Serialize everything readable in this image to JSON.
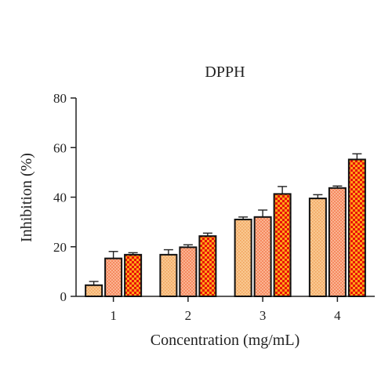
{
  "chart_data": {
    "type": "bar",
    "title": "DPPH",
    "xlabel": "Concentration (mg/mL)",
    "ylabel": "Inhibition (%)",
    "categories": [
      "1",
      "2",
      "3",
      "4"
    ],
    "ylim": [
      0,
      80
    ],
    "yticks": [
      "0",
      "20",
      "40",
      "60",
      "80"
    ],
    "grid": false,
    "series": [
      {
        "values": [
          4.5,
          16.8,
          31.0,
          39.5
        ],
        "errors": [
          1.5,
          2.0,
          1.0,
          1.5
        ],
        "color": "#f8c48a",
        "pattern": "dots"
      },
      {
        "values": [
          15.3,
          19.8,
          32.0,
          43.7
        ],
        "errors": [
          2.8,
          1.0,
          2.8,
          0.8
        ],
        "color": "#f48a5e",
        "pattern": "checks-light"
      },
      {
        "values": [
          16.8,
          24.3,
          41.3,
          55.2
        ],
        "errors": [
          0.8,
          1.2,
          3.0,
          2.3
        ],
        "color": "#f21f0b",
        "pattern": "checks-bold"
      }
    ]
  }
}
